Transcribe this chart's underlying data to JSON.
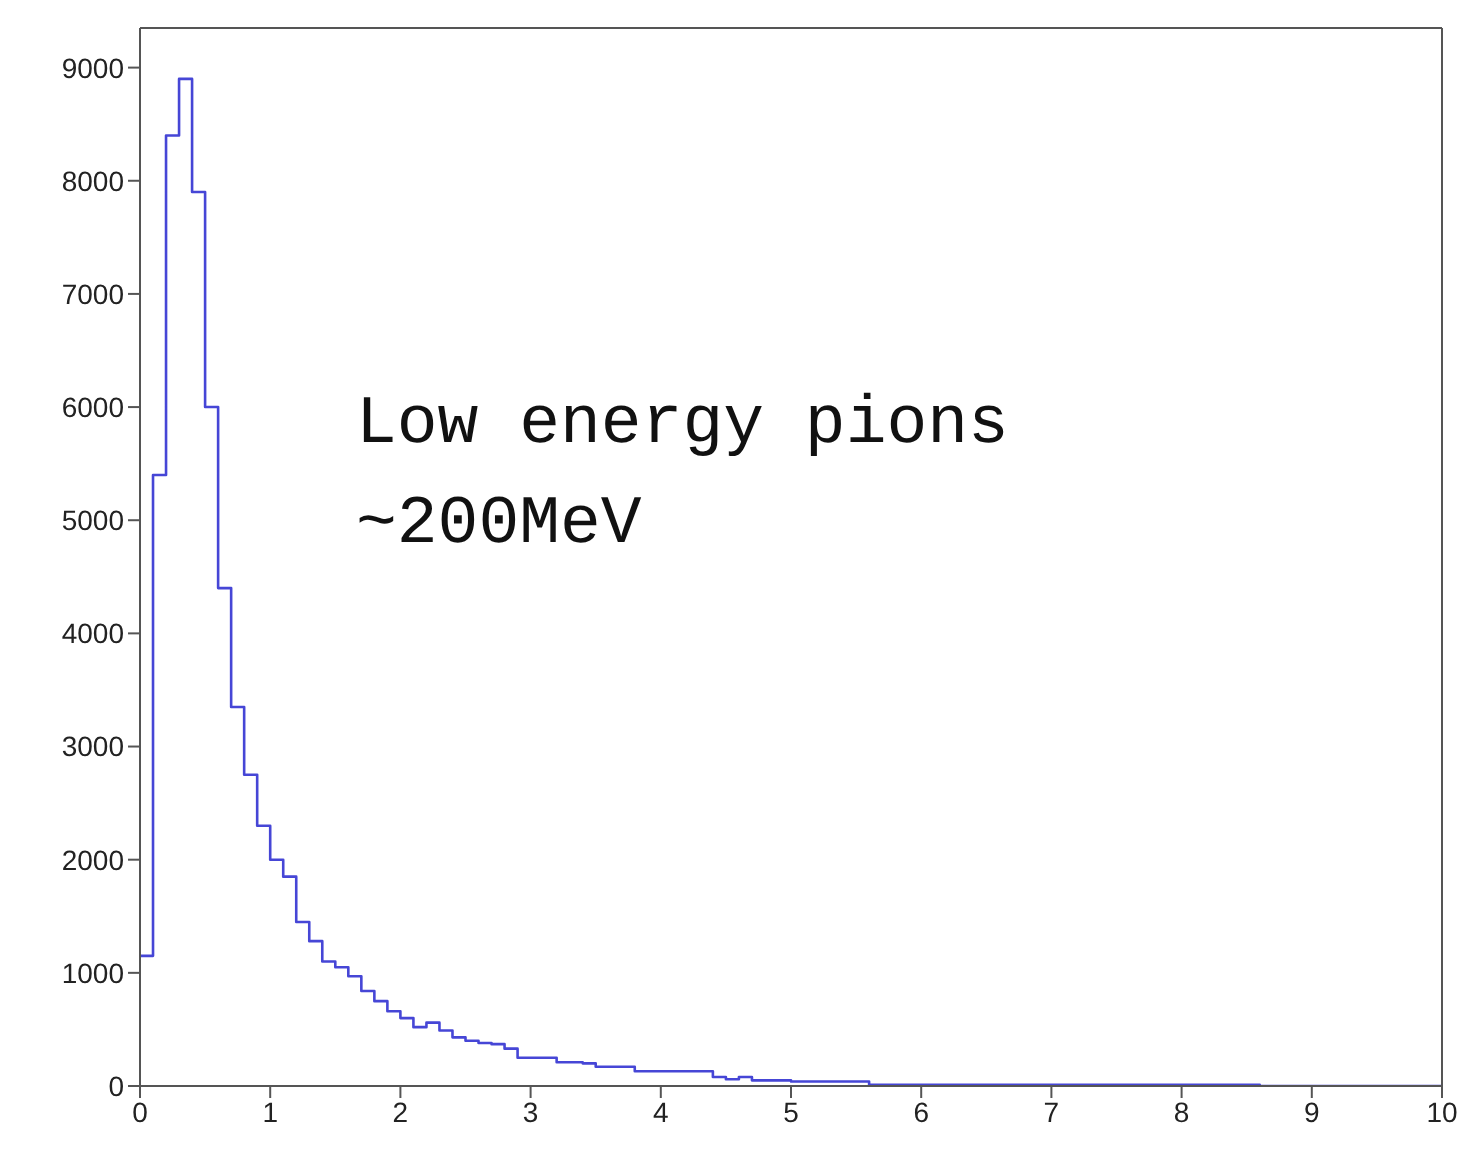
{
  "chart_data": {
    "type": "histogram",
    "bins": [
      0,
      0.1,
      0.2,
      0.3,
      0.4,
      0.5,
      0.6,
      0.7,
      0.8,
      0.9,
      1,
      1.1,
      1.2,
      1.3,
      1.4,
      1.5,
      1.6,
      1.7,
      1.8,
      1.9,
      2,
      2.1,
      2.2,
      2.3,
      2.4,
      2.5,
      2.6,
      2.7,
      2.8,
      2.9,
      3,
      3.1,
      3.2,
      3.3,
      3.4,
      3.5,
      3.6,
      3.7,
      3.8,
      3.9,
      4,
      4.1,
      4.2,
      4.3,
      4.4,
      4.5,
      4.6,
      4.7,
      4.8,
      4.9,
      5,
      5.1,
      5.2,
      5.3,
      5.4,
      5.5,
      5.6,
      5.7,
      5.8,
      5.9,
      6,
      6.1,
      6.2,
      6.3,
      6.4,
      6.5,
      6.6,
      6.7,
      6.8,
      6.9,
      7,
      7.1,
      7.2,
      7.3,
      7.4,
      7.5,
      7.6,
      7.7,
      7.8,
      7.9,
      8,
      8.1,
      8.2,
      8.3,
      8.4,
      8.5,
      8.6,
      8.7,
      8.8,
      8.9,
      9,
      9.1,
      9.2,
      9.3,
      9.4,
      9.5,
      9.6,
      9.7,
      9.8,
      9.9,
      10
    ],
    "values": [
      1150,
      5400,
      8400,
      8900,
      7900,
      6000,
      4400,
      3350,
      2750,
      2300,
      2000,
      1850,
      1450,
      1280,
      1100,
      1050,
      970,
      840,
      750,
      660,
      600,
      520,
      560,
      490,
      430,
      400,
      380,
      370,
      330,
      250,
      250,
      250,
      210,
      210,
      200,
      170,
      170,
      170,
      130,
      130,
      130,
      130,
      130,
      130,
      80,
      60,
      80,
      50,
      50,
      50,
      40,
      40,
      40,
      40,
      40,
      40,
      10,
      10,
      10,
      10,
      10,
      10,
      10,
      10,
      10,
      10,
      10,
      10,
      10,
      10,
      10,
      10,
      10,
      10,
      10,
      10,
      10,
      10,
      10,
      10,
      10,
      10,
      10,
      10,
      10,
      10,
      0,
      0,
      0,
      0,
      0,
      0,
      0,
      0,
      0,
      0,
      0,
      0,
      0,
      0
    ],
    "color": "#4646d6",
    "xlim": [
      0,
      10
    ],
    "xticks": [
      0,
      1,
      2,
      3,
      4,
      5,
      6,
      7,
      8,
      9,
      10
    ],
    "ylim": [
      0,
      9350
    ],
    "yticks": [
      0,
      1000,
      2000,
      3000,
      4000,
      5000,
      6000,
      7000,
      8000,
      9000
    ],
    "annotations": [
      "Low energy pions",
      "~200MeV"
    ]
  }
}
